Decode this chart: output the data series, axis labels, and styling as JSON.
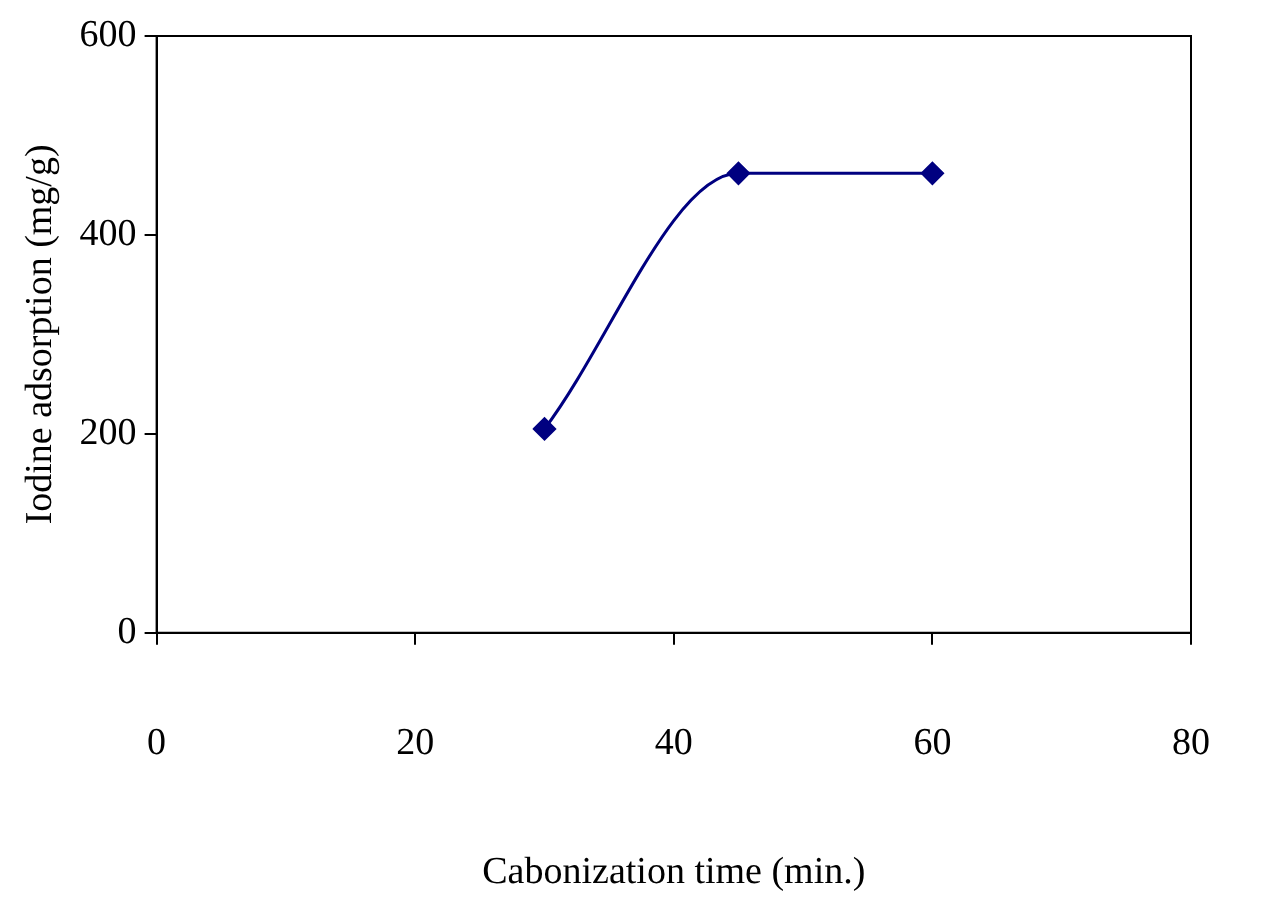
{
  "chart_data": {
    "type": "line",
    "xlabel": "Cabonization time (min.)",
    "ylabel": "Iodine adsorption (mg/g)",
    "x": [
      30,
      45,
      60
    ],
    "series": [
      {
        "color": "#000080",
        "values": [
          205,
          462,
          462
        ]
      }
    ],
    "xlim": [
      0,
      80
    ],
    "xticks": [
      0,
      20,
      40,
      60,
      80
    ],
    "ylim": [
      0,
      600
    ],
    "yticks": [
      0,
      200,
      400,
      600
    ],
    "grid": false,
    "legend": false,
    "marker": "diamond",
    "line_style": "solid"
  }
}
